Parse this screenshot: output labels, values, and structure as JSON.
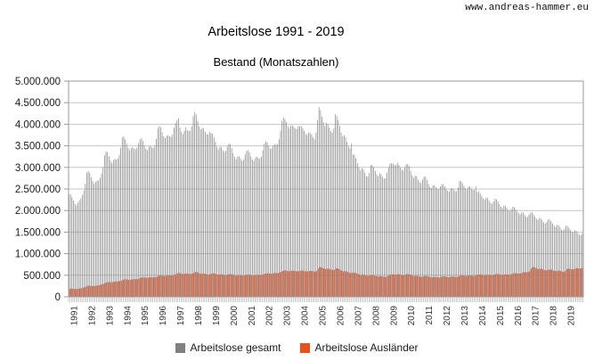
{
  "watermark": "www.andreas-hammer.eu",
  "title": "Arbeitslose 1991 - 2019",
  "subtitle": "Bestand (Monatszahlen)",
  "legend": {
    "items": [
      {
        "label": "Arbeitslose gesamt",
        "color": "#8c8c8c"
      },
      {
        "label": "Arbeitslose Ausländer",
        "color": "#e0552b"
      }
    ],
    "position": "bottom"
  },
  "colors": {
    "total_bar": "#8c8c8c",
    "foreigner_bar": "#dd5c33",
    "legend_total": "#808080",
    "legend_foreigner": "#e8501e",
    "gridline": "#c6c6c6",
    "axis": "#9a9a9a",
    "tick": "#9a9a9a",
    "axis_label": "#1a1a1a",
    "year_label": "#333333"
  },
  "chart_data": {
    "type": "bar",
    "title": "Arbeitslose 1991 - 2019",
    "subtitle": "Bestand (Monatszahlen)",
    "x_unit": "month",
    "grid": true,
    "legend_position": "bottom",
    "y_axis": {
      "min": 0,
      "max": 5000000,
      "step": 500000,
      "tick_labels_top_down": [
        "5.000.000",
        "4.500.000",
        "4.000.000",
        "3.500.000",
        "3.000.000",
        "2.500.000",
        "2.000.000",
        "1.500.000",
        "1.000.000",
        "500.000",
        "0"
      ]
    },
    "years": [
      1991,
      1992,
      1993,
      1994,
      1995,
      1996,
      1997,
      1998,
      1999,
      2000,
      2001,
      2002,
      2003,
      2004,
      2005,
      2006,
      2007,
      2008,
      2009,
      2010,
      2011,
      2012,
      2013,
      2014,
      2015,
      2016,
      2017,
      2018,
      2019
    ],
    "values_unit": "thousand persons (axis shows persons)",
    "series": [
      {
        "name": "Arbeitslose gesamt",
        "color": "#8c8c8c",
        "monthly_by_year": {
          "1991": [
            2370,
            2380,
            2310,
            2230,
            2160,
            2120,
            2180,
            2230,
            2280,
            2360,
            2460,
            2620
          ],
          "1992": [
            2880,
            2920,
            2870,
            2770,
            2680,
            2620,
            2660,
            2690,
            2700,
            2760,
            2860,
            3010
          ],
          "1993": [
            3280,
            3370,
            3350,
            3260,
            3160,
            3100,
            3170,
            3200,
            3180,
            3210,
            3290,
            3460
          ],
          "1994": [
            3690,
            3720,
            3650,
            3550,
            3460,
            3400,
            3450,
            3470,
            3430,
            3420,
            3460,
            3560
          ],
          "1995": [
            3650,
            3680,
            3610,
            3510,
            3430,
            3400,
            3480,
            3500,
            3470,
            3450,
            3510,
            3660
          ],
          "1996": [
            3900,
            3960,
            3930,
            3820,
            3720,
            3680,
            3730,
            3750,
            3720,
            3710,
            3760,
            3920
          ],
          "1997": [
            4030,
            4090,
            4140,
            3920,
            3820,
            3770,
            3850,
            3930,
            3860,
            3840,
            3850,
            3950
          ],
          "1998": [
            4190,
            4280,
            4230,
            4070,
            3950,
            3880,
            3920,
            3900,
            3830,
            3780,
            3760,
            3820
          ],
          "1999": [
            3800,
            3780,
            3700,
            3590,
            3480,
            3420,
            3480,
            3470,
            3400,
            3350,
            3380,
            3480
          ],
          "2000": [
            3550,
            3540,
            3450,
            3330,
            3240,
            3190,
            3250,
            3260,
            3210,
            3150,
            3180,
            3300
          ],
          "2001": [
            3380,
            3400,
            3350,
            3250,
            3180,
            3150,
            3230,
            3250,
            3220,
            3200,
            3250,
            3400
          ],
          "2002": [
            3550,
            3600,
            3580,
            3500,
            3430,
            3440,
            3510,
            3540,
            3520,
            3550,
            3650,
            3850
          ],
          "2003": [
            4080,
            4160,
            4120,
            4050,
            3950,
            3900,
            3970,
            3980,
            3940,
            3900,
            3890,
            3960
          ],
          "2004": [
            3950,
            3960,
            3910,
            3850,
            3780,
            3750,
            3810,
            3800,
            3760,
            3700,
            3650,
            3810
          ],
          "2005": [
            4090,
            4400,
            4330,
            4180,
            4050,
            3960,
            4030,
            4000,
            3920,
            3840,
            3800,
            3900
          ],
          "2006": [
            4230,
            4190,
            4100,
            3960,
            3810,
            3720,
            3750,
            3700,
            3590,
            3480,
            3440,
            3550
          ],
          "2007": [
            3300,
            3290,
            3210,
            3100,
            2990,
            2930,
            2980,
            2960,
            2880,
            2800,
            2790,
            2870
          ],
          "2008": [
            3050,
            3060,
            3000,
            2920,
            2840,
            2800,
            2860,
            2840,
            2780,
            2740,
            2750,
            2880
          ],
          "2009": [
            3000,
            3080,
            3100,
            3090,
            3060,
            3050,
            3110,
            3060,
            3000,
            2950,
            2930,
            3000
          ],
          "2010": [
            3070,
            3080,
            3030,
            2920,
            2820,
            2760,
            2810,
            2790,
            2720,
            2660,
            2640,
            2720
          ],
          "2011": [
            2790,
            2780,
            2710,
            2620,
            2550,
            2520,
            2580,
            2590,
            2540,
            2500,
            2500,
            2560
          ],
          "2012": [
            2610,
            2610,
            2560,
            2500,
            2460,
            2440,
            2500,
            2520,
            2490,
            2450,
            2450,
            2530
          ],
          "2013": [
            2680,
            2680,
            2640,
            2570,
            2520,
            2490,
            2550,
            2560,
            2510,
            2480,
            2480,
            2560
          ],
          "2014": [
            2430,
            2440,
            2400,
            2340,
            2280,
            2250,
            2300,
            2290,
            2230,
            2180,
            2160,
            2210
          ],
          "2015": [
            2270,
            2260,
            2210,
            2150,
            2090,
            2060,
            2110,
            2110,
            2060,
            2010,
            1990,
            2030
          ],
          "2016": [
            2090,
            2080,
            2030,
            1980,
            1940,
            1910,
            1960,
            1950,
            1900,
            1860,
            1850,
            1900
          ],
          "2017": [
            1950,
            1960,
            1910,
            1860,
            1810,
            1780,
            1830,
            1820,
            1770,
            1720,
            1700,
            1740
          ],
          "2018": [
            1790,
            1790,
            1750,
            1700,
            1650,
            1620,
            1670,
            1660,
            1610,
            1560,
            1540,
            1580
          ],
          "2019": [
            1650,
            1640,
            1600,
            1550,
            1510,
            1490,
            1540,
            1530,
            1480,
            1440,
            1430,
            1470
          ]
        }
      },
      {
        "name": "Arbeitslose Ausländer",
        "color": "#dd5c33",
        "monthly_by_year": {
          "1991": [
            185,
            190,
            190,
            185,
            180,
            180,
            190,
            195,
            200,
            210,
            220,
            235
          ],
          "1992": [
            250,
            255,
            255,
            250,
            248,
            250,
            260,
            265,
            270,
            280,
            290,
            305
          ],
          "1993": [
            325,
            335,
            340,
            340,
            338,
            340,
            350,
            355,
            355,
            360,
            365,
            375
          ],
          "1994": [
            395,
            405,
            405,
            400,
            395,
            395,
            405,
            410,
            410,
            410,
            415,
            425
          ],
          "1995": [
            440,
            450,
            450,
            445,
            440,
            440,
            450,
            455,
            450,
            450,
            455,
            465
          ],
          "1996": [
            485,
            495,
            495,
            490,
            485,
            485,
            495,
            500,
            495,
            495,
            500,
            510
          ],
          "1997": [
            530,
            545,
            550,
            540,
            530,
            525,
            535,
            540,
            535,
            530,
            530,
            540
          ],
          "1998": [
            560,
            575,
            570,
            555,
            540,
            530,
            540,
            540,
            530,
            520,
            515,
            525
          ],
          "1999": [
            540,
            545,
            540,
            525,
            515,
            510,
            520,
            520,
            510,
            505,
            505,
            515
          ],
          "2000": [
            525,
            525,
            515,
            505,
            495,
            490,
            500,
            500,
            495,
            490,
            490,
            500
          ],
          "2001": [
            510,
            515,
            510,
            500,
            495,
            495,
            505,
            510,
            505,
            505,
            510,
            520
          ],
          "2002": [
            535,
            545,
            545,
            540,
            535,
            540,
            550,
            555,
            550,
            555,
            565,
            580
          ],
          "2003": [
            600,
            610,
            610,
            605,
            595,
            595,
            605,
            605,
            600,
            595,
            590,
            600
          ],
          "2004": [
            605,
            610,
            605,
            595,
            590,
            590,
            600,
            600,
            595,
            590,
            585,
            600
          ],
          "2005": [
            650,
            690,
            685,
            670,
            655,
            645,
            655,
            650,
            640,
            630,
            620,
            630
          ],
          "2006": [
            660,
            660,
            645,
            625,
            605,
            590,
            595,
            590,
            575,
            560,
            550,
            560
          ],
          "2007": [
            560,
            560,
            545,
            530,
            515,
            505,
            515,
            510,
            500,
            490,
            485,
            495
          ],
          "2008": [
            505,
            505,
            495,
            485,
            475,
            470,
            480,
            475,
            465,
            460,
            460,
            480
          ],
          "2009": [
            500,
            515,
            520,
            520,
            515,
            515,
            525,
            520,
            510,
            505,
            500,
            510
          ],
          "2010": [
            525,
            525,
            515,
            500,
            490,
            480,
            490,
            485,
            475,
            465,
            460,
            470
          ],
          "2011": [
            485,
            485,
            475,
            465,
            455,
            450,
            460,
            465,
            455,
            450,
            450,
            460
          ],
          "2012": [
            470,
            475,
            470,
            460,
            455,
            455,
            465,
            470,
            465,
            460,
            460,
            475
          ],
          "2013": [
            495,
            500,
            495,
            490,
            485,
            485,
            495,
            500,
            490,
            485,
            485,
            500
          ],
          "2014": [
            515,
            520,
            515,
            505,
            500,
            500,
            510,
            510,
            505,
            500,
            500,
            510
          ],
          "2015": [
            525,
            530,
            525,
            515,
            510,
            510,
            520,
            520,
            515,
            515,
            515,
            530
          ],
          "2016": [
            545,
            550,
            545,
            540,
            540,
            545,
            560,
            570,
            570,
            570,
            575,
            590
          ],
          "2017": [
            655,
            690,
            685,
            670,
            650,
            640,
            650,
            650,
            635,
            620,
            610,
            620
          ],
          "2018": [
            630,
            635,
            625,
            610,
            600,
            595,
            605,
            605,
            595,
            585,
            580,
            595
          ],
          "2019": [
            640,
            655,
            650,
            640,
            635,
            640,
            655,
            665,
            660,
            655,
            660,
            680
          ]
        }
      }
    ]
  }
}
